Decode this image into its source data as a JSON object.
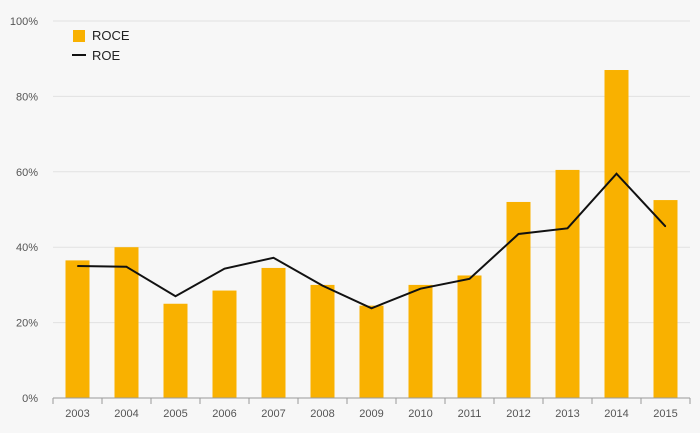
{
  "chart_data": {
    "type": "bar",
    "categories": [
      "2003",
      "2004",
      "2005",
      "2006",
      "2007",
      "2008",
      "2009",
      "2010",
      "2011",
      "2012",
      "2013",
      "2014",
      "2015"
    ],
    "series": [
      {
        "name": "ROCE",
        "kind": "bar",
        "color": "#f9b100",
        "values": [
          36.5,
          40.0,
          25.0,
          28.5,
          34.5,
          30.0,
          24.5,
          30.0,
          32.5,
          52.0,
          60.5,
          87.0,
          52.5
        ]
      },
      {
        "name": "ROE",
        "kind": "line",
        "color": "#111111",
        "values": [
          35.0,
          34.8,
          27.0,
          34.3,
          37.2,
          29.8,
          23.8,
          29.0,
          31.6,
          43.5,
          45.0,
          59.5,
          45.5
        ]
      }
    ],
    "title": "",
    "xlabel": "",
    "ylabel": "",
    "ylim": [
      0,
      100
    ],
    "yticks": [
      "0%",
      "20%",
      "40%",
      "60%",
      "80%",
      "100%"
    ],
    "grid": true,
    "legend_position": "top-left"
  }
}
